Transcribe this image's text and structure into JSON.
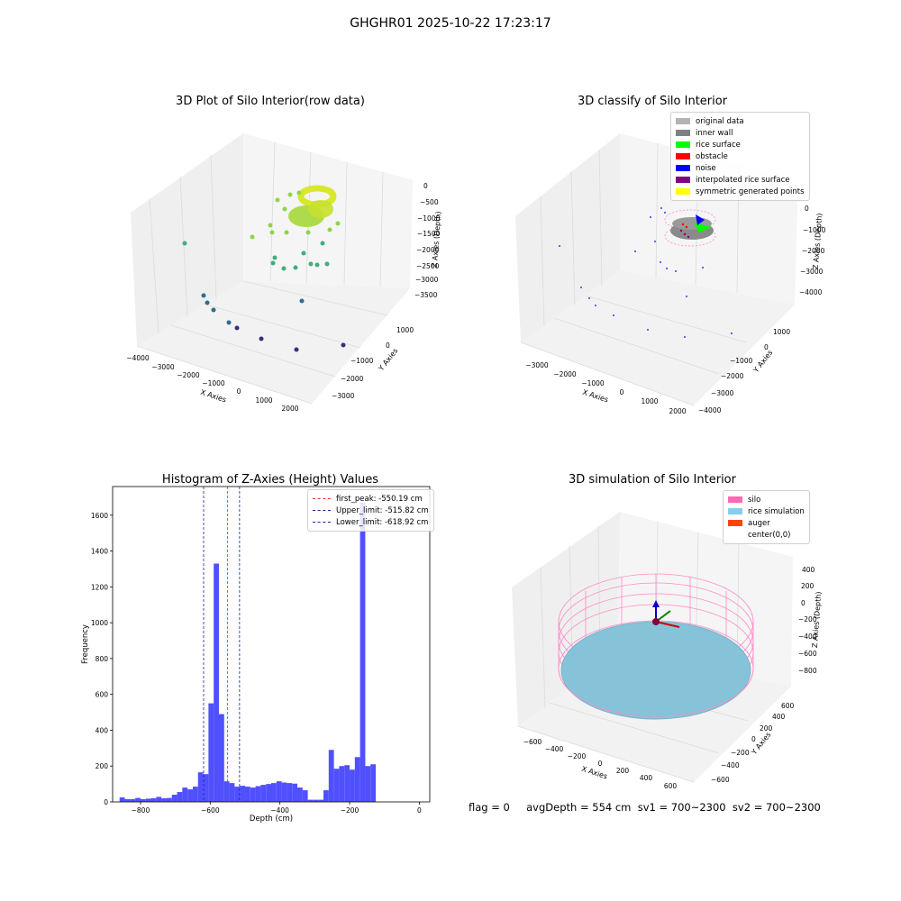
{
  "figure": {
    "suptitle": "GHGHR01 2025-10-22 17:23:17",
    "footer": "flag = 0     avgDepth = 554 cm  sv1 = 700~2300  sv2 = 700~2300"
  },
  "panels": {
    "raw": {
      "title": "3D Plot of Silo Interior(row data)",
      "xlabel": "X Axies",
      "ylabel": "Y Axies",
      "zlabel": "Z Axies (Depth)",
      "xticks": [
        "−4000",
        "−3000",
        "−2000",
        "−1000",
        "0",
        "1000",
        "2000"
      ],
      "yticks": [
        "1000",
        "0",
        "−1000",
        "−2000",
        "−3000"
      ],
      "zticks": [
        "0",
        "−500",
        "−1000",
        "−1500",
        "−2000",
        "−2500",
        "−3000",
        "−3500"
      ]
    },
    "classify": {
      "title": "3D classify of Silo Interior",
      "xlabel": "X Axies",
      "ylabel": "Y Axies",
      "zlabel": "Z Axies (Depth)",
      "xticks": [
        "−3000",
        "−2000",
        "−1000",
        "0",
        "1000",
        "2000"
      ],
      "yticks": [
        "1000",
        "0",
        "−1000",
        "−2000",
        "−3000",
        "−4000"
      ],
      "zticks": [
        "0",
        "−1000",
        "−2000",
        "−3000",
        "−4000"
      ],
      "legend": [
        {
          "label": "original data",
          "color": "#b3b3b3"
        },
        {
          "label": "inner wall",
          "color": "#808080"
        },
        {
          "label": "rice surface",
          "color": "#00ff00"
        },
        {
          "label": "obstacle",
          "color": "#ff0000"
        },
        {
          "label": "noise",
          "color": "#0000ff"
        },
        {
          "label": "interpolated rice surface",
          "color": "#800080"
        },
        {
          "label": "symmetric generated points",
          "color": "#ffff00"
        }
      ]
    },
    "simulation": {
      "title": "3D simulation of Silo Interior",
      "xlabel": "X Axies",
      "ylabel": "Y Axies",
      "zlabel": "Z Axies (Depth)",
      "xticks": [
        "−600",
        "−400",
        "−200",
        "0",
        "200",
        "400",
        "600"
      ],
      "yticks": [
        "600",
        "400",
        "200",
        "0",
        "−200",
        "−400",
        "−600"
      ],
      "zticks": [
        "400",
        "200",
        "0",
        "−200",
        "−400",
        "−600",
        "−800"
      ],
      "legend": [
        {
          "label": "silo",
          "color": "#ff69b4"
        },
        {
          "label": "rice simulation",
          "color": "#87ceeb"
        },
        {
          "label": "auger",
          "color": "#ff4500"
        },
        {
          "label": "center(0,0)",
          "color": "#ffffff"
        }
      ]
    }
  },
  "chart_data": {
    "type": "bar",
    "title": "Histogram of Z-Axies (Height) Values",
    "xlabel": "Depth (cm)",
    "ylabel": "Frequency",
    "xlim": [
      -880,
      30
    ],
    "ylim": [
      0,
      1760
    ],
    "xticks": [
      -800,
      -600,
      -400,
      -200,
      0
    ],
    "yticks": [
      0,
      200,
      400,
      600,
      800,
      1000,
      1200,
      1400,
      1600
    ],
    "bin_start": -860,
    "bin_width": 15,
    "bar_color": "#5050ff",
    "values": [
      25,
      15,
      15,
      22,
      15,
      18,
      20,
      28,
      20,
      22,
      40,
      55,
      80,
      70,
      85,
      165,
      155,
      550,
      1330,
      490,
      115,
      105,
      85,
      90,
      85,
      80,
      88,
      95,
      100,
      105,
      115,
      108,
      105,
      102,
      80,
      65,
      12,
      12,
      12,
      65,
      290,
      185,
      200,
      205,
      180,
      250,
      1670,
      200,
      210
    ],
    "vlines": [
      {
        "label": "first_peak: -550.19 cm",
        "x": -550.19,
        "color": "#e03030"
      },
      {
        "label": "Upper_limit: -515.82 cm",
        "x": -515.82,
        "color": "#2020a0"
      },
      {
        "label": "Lower_limit: -618.92 cm",
        "x": -618.92,
        "color": "#2020a0"
      }
    ],
    "legend_loc": "upper right"
  }
}
